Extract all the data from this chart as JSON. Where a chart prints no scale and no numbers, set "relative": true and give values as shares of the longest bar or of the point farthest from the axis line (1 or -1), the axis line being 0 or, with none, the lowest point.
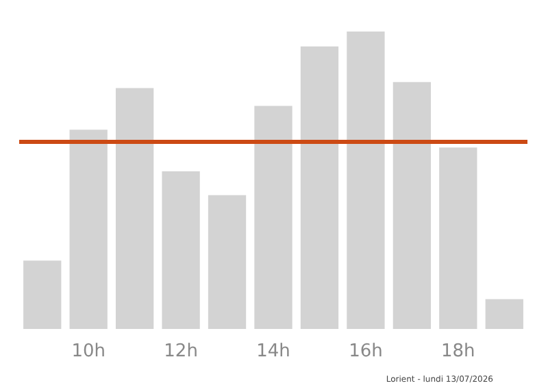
{
  "chart_data": {
    "type": "bar",
    "relative": true,
    "categories": [
      null,
      "10h",
      null,
      "12h",
      null,
      "14h",
      null,
      "16h",
      null,
      "18h",
      null
    ],
    "values": [
      0.23,
      0.67,
      0.81,
      0.53,
      0.45,
      0.75,
      0.95,
      1,
      0.83,
      0.61,
      0.1
    ],
    "color": "#d3d3d3",
    "ref_lines": [
      {
        "axis": "y",
        "value": 0.63,
        "color": "#cc4a14",
        "line_style": "solid"
      }
    ],
    "annotations": [
      "Lorient - lundi 13/07/2026"
    ],
    "grid": false
  }
}
